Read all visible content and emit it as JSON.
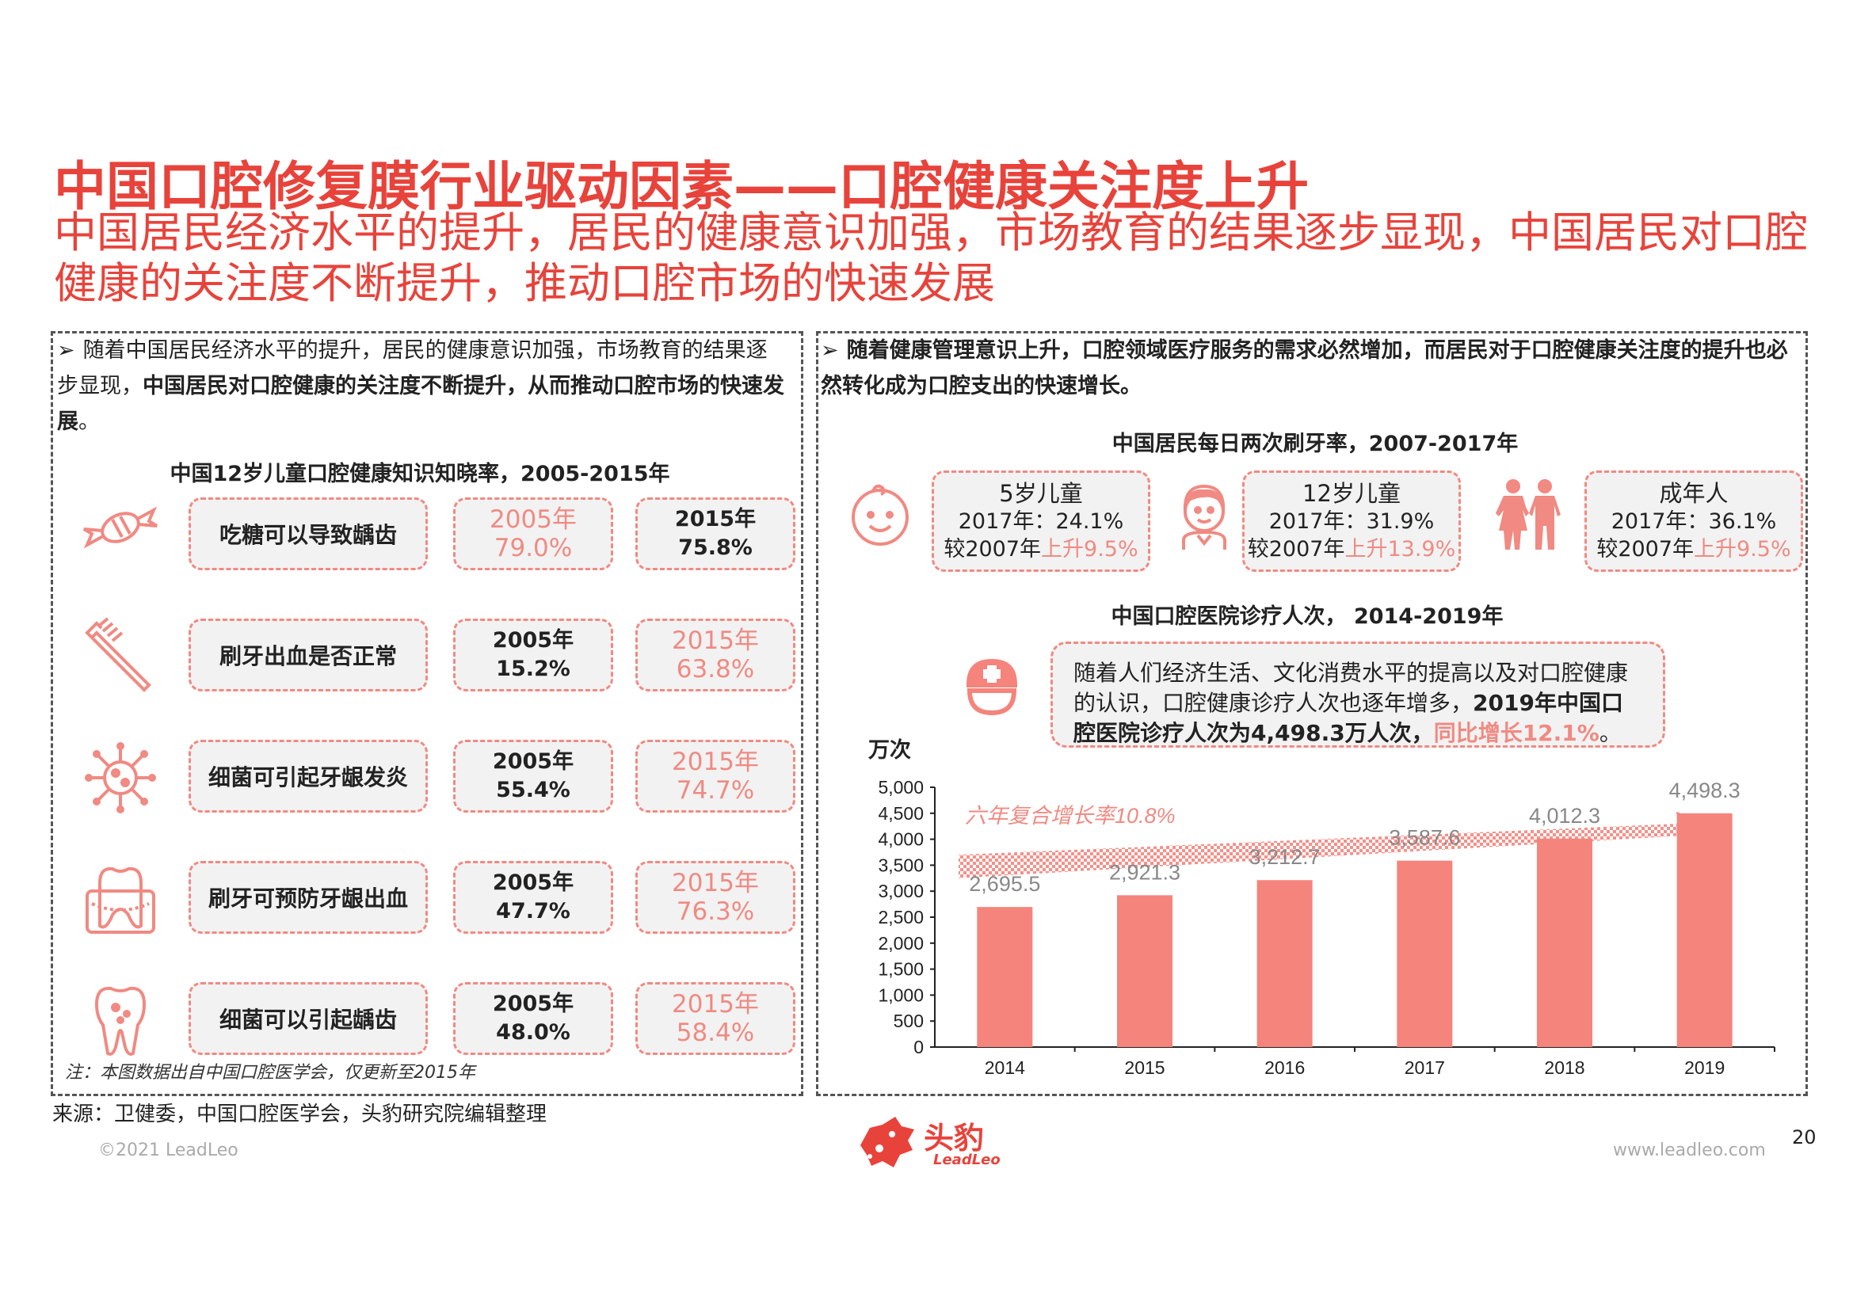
{
  "header": {
    "title": "中国口腔修复膜行业驱动因素——口腔健康关注度上升",
    "subtitle": "中国居民经济水平的提升，居民的健康意识加强，市场教育的结果逐步显现，中国居民对口腔健康的关注度不断提升，推动口腔市场的快速发展"
  },
  "left_panel": {
    "bullet_normal": "随着中国居民经济水平的提升，居民的健康意识加强，市场教育的结果逐步显现，",
    "bullet_bold": "中国居民对口腔健康的关注度不断提升，从而推动口腔市场的快速发展",
    "bullet_end": "。",
    "chart_title": "中国12岁儿童口腔健康知识知晓率，2005-2015年",
    "rows": [
      {
        "label": "吃糖可以导致龋齿",
        "y2005": "2005年",
        "v2005": "79.0%",
        "y2015": "2015年",
        "v2015": "75.8%",
        "highlight": "2005",
        "icon": "candy-icon"
      },
      {
        "label": "刷牙出血是否正常",
        "y2005": "2005年",
        "v2005": "15.2%",
        "y2015": "2015年",
        "v2015": "63.8%",
        "highlight": "2015",
        "icon": "toothbrush-icon"
      },
      {
        "label": "细菌可引起牙龈发炎",
        "y2005": "2005年",
        "v2005": "55.4%",
        "y2015": "2015年",
        "v2015": "74.7%",
        "highlight": "2015",
        "icon": "bacteria-icon"
      },
      {
        "label": "刷牙可预防牙龈出血",
        "y2005": "2005年",
        "v2005": "47.7%",
        "y2015": "2015年",
        "v2015": "76.3%",
        "highlight": "2015",
        "icon": "gum-icon"
      },
      {
        "label": "细菌可以引起龋齿",
        "y2005": "2005年",
        "v2005": "48.0%",
        "y2015": "2015年",
        "v2015": "58.4%",
        "highlight": "2015",
        "icon": "decayed-tooth-icon"
      }
    ],
    "note": "注：本图数据出自中国口腔医学会，仅更新至2015年"
  },
  "right_panel": {
    "bullet_bold": "随着健康管理意识上升，口腔领域医疗服务的需求必然增加，而居民对于口腔健康关注度的提升也必然转化成为口腔支出的快速增长。",
    "brush_title": "中国居民每日两次刷牙率，2007-2017年",
    "brush_stats": [
      {
        "group": "5岁儿童",
        "rate": "2017年：24.1%",
        "change_prefix": "较2007年",
        "change": "上升9.5%",
        "icon": "baby-face-icon"
      },
      {
        "group": "12岁儿童",
        "rate": "2017年：31.9%",
        "change_prefix": "较2007年",
        "change": "上升13.9%",
        "icon": "child-icon"
      },
      {
        "group": "成年人",
        "rate": "2017年：36.1%",
        "change_prefix": "较2007年",
        "change": "上升9.5%",
        "icon": "adults-icon"
      }
    ],
    "visits_title": "中国口腔医院诊疗人次， 2014-2019年",
    "callout": {
      "text1": "随着人们经济生活、文化消费水平的提高以及对口腔健康的认识，口腔健康诊疗人次也逐年增多，",
      "text_bold": "2019年中国口腔医院诊疗人次为4,498.3万人次，",
      "text_red": "同比增长12.1%",
      "text_end": "。"
    }
  },
  "chart_data": {
    "type": "bar",
    "title": "中国口腔医院诊疗人次， 2014-2019年",
    "ylabel": "万次",
    "categories": [
      "2014",
      "2015",
      "2016",
      "2017",
      "2018",
      "2019"
    ],
    "values": [
      2695.5,
      2921.3,
      3212.7,
      3587.6,
      4012.3,
      4498.3
    ],
    "value_labels": [
      "2,695.5",
      "2,921.3",
      "3,212.7",
      "3,587.6",
      "4,012.3",
      "4,498.3"
    ],
    "ylim": [
      0,
      5000
    ],
    "yticks": [
      "0",
      "500",
      "1,000",
      "1,500",
      "2,000",
      "2,500",
      "3,000",
      "3,500",
      "4,000",
      "4,500",
      "5,000"
    ],
    "annotation": "六年复合增长率10.8%",
    "bar_color": "#f4847c",
    "grid": false
  },
  "footer": {
    "source": "来源：卫健委，中国口腔医学会，头豹研究院编辑整理",
    "copyright": "©2021 LeadLeo",
    "logo_cn": "头豹",
    "logo_en": "LeadLeo",
    "website": "www.leadleo.com",
    "page": "20"
  },
  "colors": {
    "accent": "#e8433b",
    "pink": "#f08a82",
    "bar": "#f4847c",
    "box_bg": "#f2f2f2"
  }
}
